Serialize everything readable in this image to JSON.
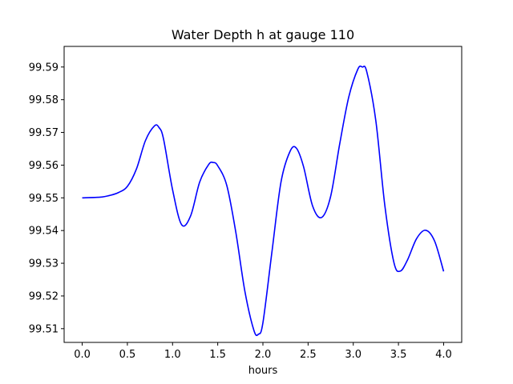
{
  "chart_data": {
    "type": "line",
    "title": "Water Depth h at gauge 110",
    "xlabel": "hours",
    "ylabel": "",
    "xlim": [
      -0.2,
      4.2
    ],
    "ylim": [
      99.5058,
      99.5963
    ],
    "xticks": [
      0.0,
      0.5,
      1.0,
      1.5,
      2.0,
      2.5,
      3.0,
      3.5,
      4.0
    ],
    "xtick_labels": [
      "0.0",
      "0.5",
      "1.0",
      "1.5",
      "2.0",
      "2.5",
      "3.0",
      "3.5",
      "4.0"
    ],
    "yticks": [
      99.51,
      99.52,
      99.53,
      99.54,
      99.55,
      99.56,
      99.57,
      99.58,
      99.59
    ],
    "ytick_labels": [
      "99.51",
      "99.52",
      "99.53",
      "99.54",
      "99.55",
      "99.56",
      "99.57",
      "99.58",
      "99.59"
    ],
    "grid": false,
    "series": [
      {
        "color": "#0000ff",
        "x": [
          0.0,
          0.2,
          0.3,
          0.4,
          0.5,
          0.6,
          0.7,
          0.8,
          0.85,
          0.9,
          1.0,
          1.1,
          1.2,
          1.3,
          1.4,
          1.45,
          1.5,
          1.6,
          1.7,
          1.8,
          1.9,
          1.95,
          2.0,
          2.1,
          2.2,
          2.3,
          2.37,
          2.45,
          2.55,
          2.65,
          2.75,
          2.85,
          2.95,
          3.05,
          3.1,
          3.15,
          3.25,
          3.35,
          3.45,
          3.52,
          3.6,
          3.7,
          3.8,
          3.9,
          4.0
        ],
        "values": [
          99.55,
          99.5502,
          99.5507,
          99.5516,
          99.5535,
          99.5588,
          99.5675,
          99.572,
          99.5715,
          99.568,
          99.5525,
          99.5418,
          99.5445,
          99.5548,
          99.5602,
          99.5608,
          99.5598,
          99.5538,
          99.5395,
          99.5215,
          99.5095,
          99.5083,
          99.5118,
          99.5335,
          99.5548,
          99.5642,
          99.5652,
          99.5595,
          99.5475,
          99.544,
          99.5505,
          99.5665,
          99.5808,
          99.5893,
          99.59,
          99.5885,
          99.5735,
          99.5475,
          99.5302,
          99.5276,
          99.531,
          99.5375,
          99.5401,
          99.5368,
          99.5275
        ]
      }
    ]
  }
}
